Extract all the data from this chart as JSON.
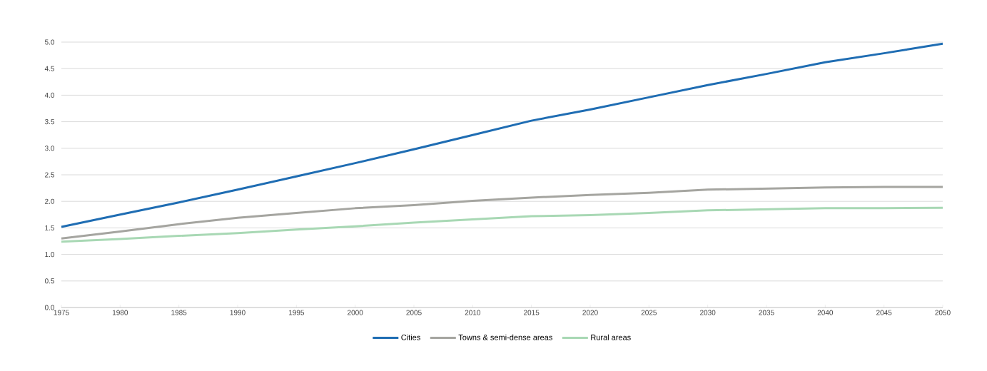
{
  "chart_data": {
    "type": "line",
    "x": [
      1975,
      1980,
      1985,
      1990,
      1995,
      2000,
      2005,
      2010,
      2015,
      2020,
      2025,
      2030,
      2035,
      2040,
      2045,
      2050
    ],
    "series": [
      {
        "name": "Cities",
        "color": "#1f6db3",
        "values": [
          1.52,
          1.75,
          1.98,
          2.22,
          2.47,
          2.72,
          2.98,
          3.25,
          3.52,
          3.73,
          3.96,
          4.19,
          4.4,
          4.62,
          4.79,
          4.97
        ]
      },
      {
        "name": "Towns & semi-dense areas",
        "color": "#a5a5a0",
        "values": [
          1.3,
          1.43,
          1.57,
          1.69,
          1.78,
          1.87,
          1.93,
          2.01,
          2.07,
          2.12,
          2.16,
          2.22,
          2.24,
          2.26,
          2.27,
          2.27
        ]
      },
      {
        "name": "Rural areas",
        "color": "#a8d8b4",
        "values": [
          1.24,
          1.29,
          1.35,
          1.4,
          1.47,
          1.53,
          1.6,
          1.66,
          1.72,
          1.74,
          1.78,
          1.83,
          1.85,
          1.87,
          1.87,
          1.88
        ]
      }
    ],
    "xlim": [
      1975,
      2050
    ],
    "xticks": [
      1975,
      1980,
      1985,
      1990,
      1995,
      2000,
      2005,
      2010,
      2015,
      2020,
      2025,
      2030,
      2035,
      2040,
      2045,
      2050
    ],
    "ylim": [
      0,
      5
    ],
    "yticks": [
      {
        "value": 0,
        "label": "0.0"
      },
      {
        "value": 0.5,
        "label": "0.5"
      },
      {
        "value": 1,
        "label": "1.0"
      },
      {
        "value": 1.5,
        "label": "1.5"
      },
      {
        "value": 2,
        "label": "2.0"
      },
      {
        "value": 2.5,
        "label": "2.5"
      },
      {
        "value": 3,
        "label": "3.0"
      },
      {
        "value": 3.5,
        "label": "3.5"
      },
      {
        "value": 4,
        "label": "4.0"
      },
      {
        "value": 4.5,
        "label": "4.5"
      },
      {
        "value": 5,
        "label": "5.0"
      }
    ],
    "grid": "y",
    "legend": "bottom",
    "marker": "none",
    "line_style": "solid"
  }
}
